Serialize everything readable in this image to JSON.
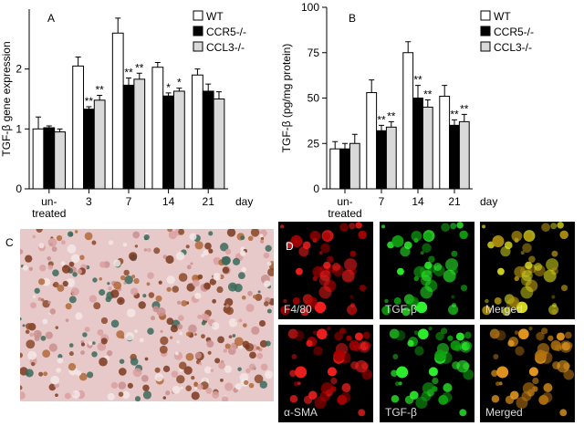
{
  "chart_data": [
    {
      "type": "bar",
      "panel_label": "A",
      "y_label": "TGF-β gene expression",
      "x_label": "day",
      "categories": [
        "un-treated",
        "3",
        "7",
        "14",
        "21"
      ],
      "ylim": [
        0,
        3
      ],
      "yticks": [
        0,
        1,
        2
      ],
      "series": [
        {
          "name": "WT",
          "color": "#ffffff",
          "values": [
            1.0,
            2.05,
            2.6,
            2.03,
            1.9
          ],
          "errors": [
            0.2,
            0.15,
            0.25,
            0.08,
            0.1
          ],
          "significance": [
            null,
            null,
            null,
            null,
            null
          ]
        },
        {
          "name": "CCR5-/-",
          "color": "#000000",
          "values": [
            1.02,
            1.33,
            1.73,
            1.55,
            1.63
          ],
          "errors": [
            0.03,
            0.04,
            0.12,
            0.05,
            0.12
          ],
          "significance": [
            null,
            "**",
            "**",
            "*",
            null
          ]
        },
        {
          "name": "CCL3-/-",
          "color": "#d9d9d9",
          "values": [
            0.95,
            1.48,
            1.83,
            1.63,
            1.5
          ],
          "errors": [
            0.05,
            0.08,
            0.1,
            0.05,
            0.12
          ],
          "significance": [
            null,
            "**",
            "**",
            "*",
            null
          ]
        }
      ]
    },
    {
      "type": "bar",
      "panel_label": "B",
      "y_label": "TGF-β (pg/mg protein)",
      "x_label": "day",
      "categories": [
        "un-treated",
        "7",
        "14",
        "21"
      ],
      "ylim": [
        0,
        100
      ],
      "yticks": [
        0,
        25,
        50,
        75,
        100
      ],
      "series": [
        {
          "name": "WT",
          "color": "#ffffff",
          "values": [
            22,
            53,
            75,
            51
          ],
          "errors": [
            4,
            7,
            6,
            6
          ],
          "significance": [
            null,
            null,
            null,
            null
          ]
        },
        {
          "name": "CCR5-/-",
          "color": "#000000",
          "values": [
            22,
            32,
            50,
            35
          ],
          "errors": [
            3,
            3,
            7,
            3
          ],
          "significance": [
            null,
            "**",
            "**",
            "**"
          ]
        },
        {
          "name": "CCL3-/-",
          "color": "#d9d9d9",
          "values": [
            25,
            34,
            45,
            37
          ],
          "errors": [
            5,
            3,
            4,
            4
          ],
          "significance": [
            null,
            "**",
            "**",
            "**"
          ]
        }
      ]
    }
  ],
  "panels": {
    "c": {
      "label": "C"
    },
    "d": {
      "label": "D",
      "images": [
        "F4/80",
        "TGF-β",
        "Merged",
        "α-SMA",
        "TGF-β",
        "Merged"
      ]
    }
  }
}
